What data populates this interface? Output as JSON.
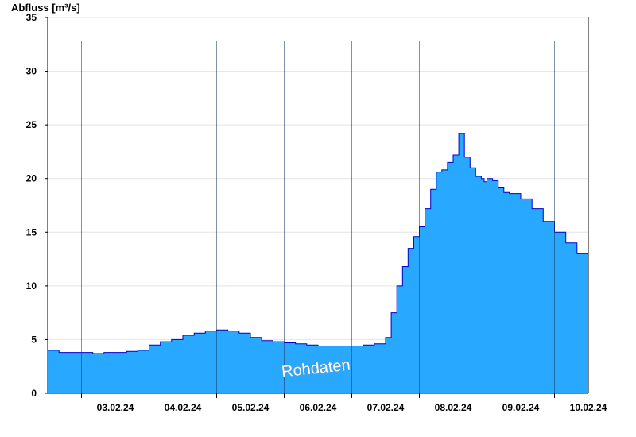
{
  "chart_data": {
    "type": "area",
    "ylabel": "Abfluss [m³/s]",
    "ylim": [
      0,
      35
    ],
    "yticks": [
      0,
      5,
      10,
      15,
      20,
      25,
      30,
      35
    ],
    "xlim": [
      "2024-02-02T12:00",
      "2024-02-10T12:00"
    ],
    "xtick_labels": [
      "03.02.24",
      "04.02.24",
      "05.02.24",
      "06.02.24",
      "07.02.24",
      "08.02.24",
      "09.02.24",
      "10.02.24"
    ],
    "grid": true,
    "fill_color": "#29a8ff",
    "line_color": "#0000cc",
    "annotation": "Rohdaten",
    "series": [
      {
        "x": [
          "2024-02-02T12:00",
          "2024-02-02T16:00",
          "2024-02-02T20:00",
          "2024-02-03T00:00",
          "2024-02-03T04:00",
          "2024-02-03T08:00",
          "2024-02-03T12:00",
          "2024-02-03T16:00",
          "2024-02-03T20:00",
          "2024-02-04T00:00",
          "2024-02-04T04:00",
          "2024-02-04T08:00",
          "2024-02-04T12:00",
          "2024-02-04T16:00",
          "2024-02-04T20:00",
          "2024-02-05T00:00",
          "2024-02-05T04:00",
          "2024-02-05T08:00",
          "2024-02-05T12:00",
          "2024-02-05T16:00",
          "2024-02-05T20:00",
          "2024-02-06T00:00",
          "2024-02-06T04:00",
          "2024-02-06T08:00",
          "2024-02-06T12:00",
          "2024-02-06T16:00",
          "2024-02-06T20:00",
          "2024-02-07T00:00",
          "2024-02-07T04:00",
          "2024-02-07T08:00",
          "2024-02-07T12:00",
          "2024-02-07T14:00",
          "2024-02-07T16:00",
          "2024-02-07T18:00",
          "2024-02-07T20:00",
          "2024-02-07T22:00",
          "2024-02-08T00:00",
          "2024-02-08T02:00",
          "2024-02-08T04:00",
          "2024-02-08T06:00",
          "2024-02-08T08:00",
          "2024-02-08T10:00",
          "2024-02-08T12:00",
          "2024-02-08T14:00",
          "2024-02-08T16:00",
          "2024-02-08T18:00",
          "2024-02-08T20:00",
          "2024-02-08T22:00",
          "2024-02-08T23:00",
          "2024-02-09T00:00",
          "2024-02-09T02:00",
          "2024-02-09T04:00",
          "2024-02-09T06:00",
          "2024-02-09T08:00",
          "2024-02-09T12:00",
          "2024-02-09T16:00",
          "2024-02-09T20:00",
          "2024-02-10T00:00",
          "2024-02-10T04:00",
          "2024-02-10T08:00",
          "2024-02-10T12:00"
        ],
        "values": [
          4.0,
          3.8,
          3.8,
          3.8,
          3.7,
          3.8,
          3.8,
          3.9,
          4.0,
          4.5,
          4.8,
          5.0,
          5.4,
          5.6,
          5.8,
          5.9,
          5.8,
          5.6,
          5.2,
          4.9,
          4.8,
          4.7,
          4.6,
          4.5,
          4.4,
          4.4,
          4.4,
          4.4,
          4.5,
          4.6,
          5.2,
          7.5,
          10.0,
          11.8,
          13.5,
          14.6,
          15.5,
          17.2,
          19.0,
          20.6,
          20.8,
          21.5,
          22.2,
          24.2,
          22.0,
          21.0,
          20.2,
          20.0,
          19.7,
          20.0,
          19.8,
          19.2,
          18.7,
          18.6,
          18.1,
          17.2,
          16.0,
          15.0,
          14.0,
          13.0,
          12.1
        ]
      }
    ]
  }
}
